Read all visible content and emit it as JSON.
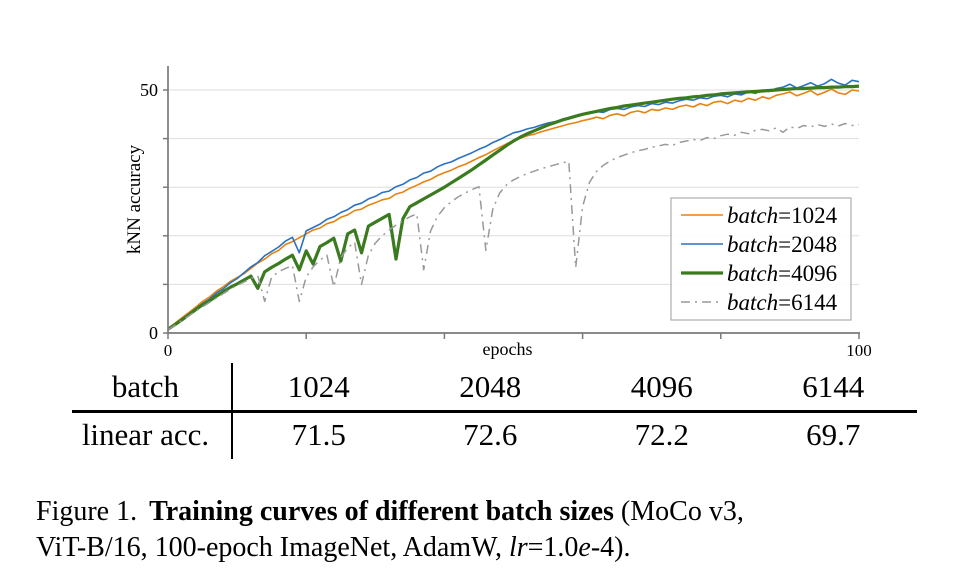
{
  "chart_data": {
    "type": "line",
    "title": "",
    "xlabel": "epochs",
    "ylabel": "kNN accuracy",
    "xlim": [
      0,
      100
    ],
    "ylim": [
      0,
      55
    ],
    "x_ticks": [
      0,
      20,
      40,
      60,
      80,
      100
    ],
    "x_tick_labels": [
      "0",
      "",
      "",
      "",
      "",
      "100"
    ],
    "y_ticks": [
      0,
      10,
      20,
      30,
      40,
      50
    ],
    "y_tick_labels": [
      "0",
      "",
      "",
      "",
      "",
      "50"
    ],
    "grid": "horizontal",
    "legend_position": "lower-right-inside",
    "x_step": 1,
    "colors": {
      "batch1024": "#e8820e",
      "batch2048": "#2c71c0",
      "batch4096": "#3b7b1f",
      "batch6144": "#999999",
      "gridline": "#dedede",
      "spine": "#7a7a7a"
    },
    "series": [
      {
        "name": "batch=1024",
        "label_italic": "batch",
        "label_rest": "=1024",
        "color": "#e8820e",
        "width": 1.6,
        "dash": "",
        "values": [
          0.9,
          2.0,
          3.1,
          4.2,
          5.3,
          6.5,
          7.4,
          8.6,
          9.5,
          10.6,
          11.4,
          12.2,
          13.3,
          14.4,
          15.2,
          16.3,
          17.0,
          18.2,
          18.8,
          19.6,
          20.4,
          21.2,
          21.6,
          22.5,
          22.9,
          23.8,
          24.3,
          25.2,
          25.5,
          26.3,
          26.8,
          27.4,
          27.7,
          28.6,
          29.0,
          29.8,
          30.4,
          31.1,
          31.6,
          32.4,
          33.0,
          33.5,
          34.2,
          34.7,
          35.4,
          36.1,
          36.7,
          37.5,
          38.2,
          38.9,
          39.6,
          40.1,
          40.6,
          40.9,
          41.4,
          41.8,
          42.2,
          42.6,
          43.0,
          43.3,
          43.7,
          44.0,
          44.4,
          44.1,
          44.8,
          45.1,
          44.7,
          45.4,
          45.7,
          45.3,
          46.0,
          45.8,
          46.3,
          46.0,
          46.6,
          46.9,
          46.5,
          47.2,
          46.8,
          47.5,
          47.7,
          47.2,
          47.9,
          47.6,
          48.3,
          47.9,
          48.6,
          48.2,
          48.9,
          49.2,
          49.6,
          48.8,
          49.3,
          49.9,
          49.0,
          49.5,
          50.2,
          49.4,
          49.1,
          50.0,
          49.8
        ]
      },
      {
        "name": "batch=2048",
        "label_italic": "batch",
        "label_rest": "=2048",
        "color": "#2c71c0",
        "width": 1.6,
        "dash": "",
        "values": [
          0.8,
          1.8,
          2.9,
          3.9,
          5.0,
          6.1,
          7.0,
          8.2,
          9.1,
          10.3,
          11.2,
          12.4,
          13.6,
          14.5,
          15.9,
          16.8,
          17.7,
          18.9,
          19.7,
          16.5,
          21.0,
          21.7,
          22.4,
          23.4,
          23.9,
          24.8,
          25.4,
          26.3,
          26.7,
          27.6,
          28.1,
          28.9,
          29.2,
          30.1,
          30.6,
          31.5,
          32.0,
          32.9,
          33.3,
          34.2,
          34.8,
          35.2,
          35.9,
          36.5,
          37.1,
          37.8,
          38.4,
          39.2,
          39.8,
          40.5,
          41.2,
          41.5,
          42.0,
          42.3,
          42.8,
          43.2,
          43.5,
          43.9,
          44.3,
          44.7,
          45.0,
          45.2,
          45.6,
          45.4,
          46.0,
          46.2,
          46.0,
          46.5,
          46.8,
          46.6,
          47.2,
          47.0,
          47.5,
          47.3,
          47.8,
          48.1,
          47.9,
          48.4,
          48.2,
          48.7,
          48.9,
          48.6,
          49.2,
          49.0,
          49.6,
          49.3,
          50.0,
          49.7,
          50.3,
          50.6,
          51.2,
          50.4,
          50.9,
          51.5,
          50.8,
          51.3,
          52.2,
          51.4,
          51.0,
          52.0,
          51.7
        ]
      },
      {
        "name": "batch=4096",
        "label_italic": "batch",
        "label_rest": "=4096",
        "color": "#3b7b1f",
        "width": 3.2,
        "dash": "",
        "values": [
          0.8,
          1.7,
          2.7,
          3.7,
          4.8,
          5.8,
          6.6,
          7.6,
          8.5,
          9.4,
          10.1,
          10.9,
          11.7,
          9.2,
          12.6,
          13.5,
          14.3,
          15.2,
          16.0,
          13.0,
          16.9,
          14.2,
          17.8,
          18.6,
          19.5,
          14.8,
          20.4,
          21.2,
          16.5,
          22.0,
          22.8,
          23.6,
          24.4,
          15.2,
          23.5,
          26.0,
          26.8,
          27.6,
          28.4,
          29.2,
          30.0,
          30.9,
          31.8,
          32.7,
          33.6,
          34.6,
          35.6,
          36.6,
          37.6,
          38.6,
          39.5,
          40.3,
          41.0,
          41.6,
          42.2,
          42.8,
          43.3,
          43.8,
          44.2,
          44.6,
          45.0,
          45.3,
          45.6,
          45.9,
          46.2,
          46.4,
          46.7,
          46.9,
          47.1,
          47.3,
          47.5,
          47.7,
          47.9,
          48.1,
          48.3,
          48.4,
          48.6,
          48.7,
          48.9,
          49.0,
          49.2,
          49.3,
          49.4,
          49.5,
          49.6,
          49.7,
          49.8,
          49.9,
          50.0,
          50.1,
          50.2,
          50.3,
          50.3,
          50.4,
          50.5,
          50.5,
          50.6,
          50.6,
          50.7,
          50.7,
          50.8
        ]
      },
      {
        "name": "batch=6144",
        "label_italic": "batch",
        "label_rest": "=6144",
        "color": "#999999",
        "width": 1.5,
        "dash": "9 5 2 5",
        "values": [
          0.7,
          1.6,
          2.6,
          3.5,
          4.5,
          5.4,
          6.3,
          7.2,
          8.1,
          9.0,
          9.8,
          10.5,
          11.2,
          11.8,
          6.5,
          11.5,
          12.6,
          13.3,
          13.9,
          6.5,
          11.5,
          13.6,
          15.0,
          16.0,
          9.5,
          15.5,
          17.5,
          18.7,
          10.0,
          16.0,
          18.5,
          20.0,
          21.2,
          22.2,
          23.1,
          23.9,
          24.5,
          13.0,
          21.0,
          24.0,
          25.8,
          27.0,
          28.0,
          28.8,
          29.5,
          30.1,
          17.0,
          25.5,
          28.8,
          30.5,
          31.5,
          32.2,
          32.8,
          33.3,
          33.8,
          34.2,
          34.6,
          35.0,
          35.3,
          13.5,
          26.0,
          31.0,
          33.2,
          34.5,
          35.4,
          36.1,
          36.6,
          37.1,
          37.5,
          37.8,
          38.2,
          38.5,
          38.8,
          38.6,
          39.2,
          39.5,
          39.8,
          39.6,
          40.2,
          40.0,
          40.6,
          40.9,
          40.7,
          41.3,
          41.0,
          41.7,
          41.9,
          41.6,
          42.2,
          41.3,
          42.4,
          42.1,
          42.7,
          42.4,
          42.9,
          42.5,
          43.0,
          42.6,
          43.1,
          42.7,
          42.9
        ]
      }
    ]
  },
  "table": {
    "rows": [
      {
        "label": "batch",
        "values": [
          "1024",
          "2048",
          "4096",
          "6144"
        ]
      },
      {
        "label": "linear acc.",
        "values": [
          "71.5",
          "72.6",
          "72.2",
          "69.7"
        ]
      }
    ]
  },
  "caption": {
    "figure_label": "Figure 1.",
    "bold": "Training curves of different batch sizes",
    "rest1": " (MoCo v3,",
    "line2_pre": "ViT-B/16, 100-epoch ImageNet, AdamW, ",
    "lr": "lr",
    "eq": "=1.0",
    "e": "e",
    "tail": "-4)."
  }
}
